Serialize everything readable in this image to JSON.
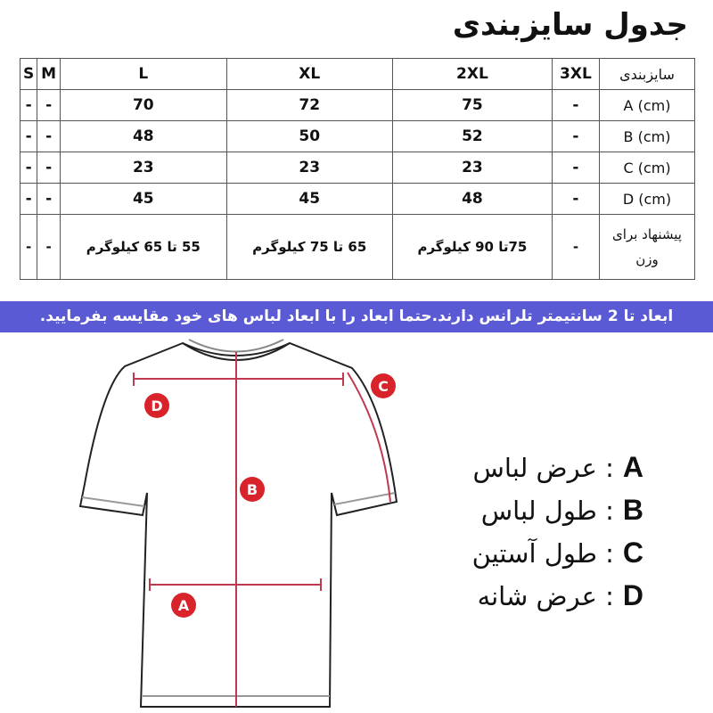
{
  "title": "جدول سایزبندی",
  "table": {
    "header": [
      "سایزبندی",
      "3XL",
      "2XL",
      "XL",
      "L",
      "M",
      "S"
    ],
    "rows": [
      [
        "A (cm)",
        "-",
        "75",
        "72",
        "70",
        "-",
        "-"
      ],
      [
        "B (cm)",
        "-",
        "52",
        "50",
        "48",
        "-",
        "-"
      ],
      [
        "C (cm)",
        "-",
        "23",
        "23",
        "23",
        "-",
        "-"
      ],
      [
        "D (cm)",
        "-",
        "48",
        "45",
        "45",
        "-",
        "-"
      ]
    ],
    "weight": {
      "label": "پیشنهاد برای وزن",
      "cells": [
        "-",
        "75تا 90 کیلوگرم",
        "65 تا 75 کیلوگرم",
        "55 تا 65 کیلوگرم",
        "-",
        "-"
      ]
    }
  },
  "banner": "ابعاد تا 2 سانتیمتر تلرانس دارند.حتما ابعاد را با ابعاد لباس های خود مقایسه بفرمایید.",
  "legend": [
    {
      "key": "A",
      "label": ": عرض لباس"
    },
    {
      "key": "B",
      "label": ": طول لباس"
    },
    {
      "key": "C",
      "label": ": طول آستین"
    },
    {
      "key": "D",
      "label": ": عرض شانه"
    }
  ],
  "diagram_labels": [
    "A",
    "B",
    "C",
    "D"
  ],
  "colors": {
    "banner": "#5a5bd4",
    "marker": "#d8232a",
    "measure_line": "#c0394f"
  }
}
